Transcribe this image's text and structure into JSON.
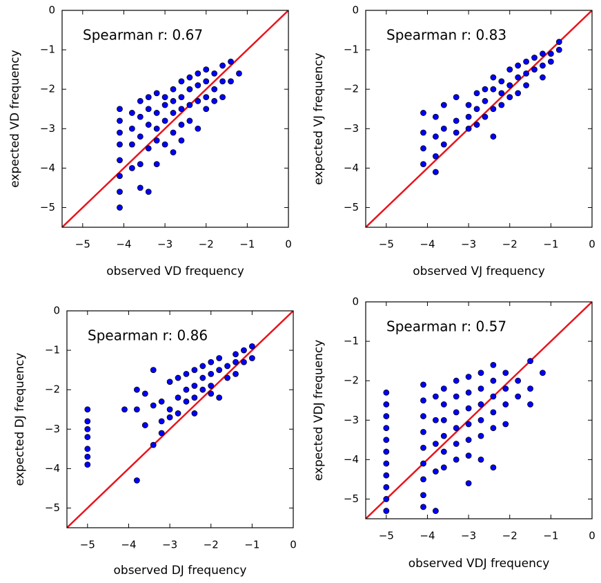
{
  "chart_data": [
    {
      "type": "scatter",
      "xlabel": "observed VD frequency",
      "ylabel": "expected VD frequency",
      "annotation": "Spearman r: 0.67",
      "color": "#0000ff",
      "edgecolor": "#000000",
      "reference_line_color": "#e8141c",
      "xlim": [
        -5.5,
        0
      ],
      "ylim": [
        -5.5,
        0
      ],
      "xticks": [
        {
          "value": -5,
          "label": "−5"
        },
        {
          "value": -4,
          "label": "−4"
        },
        {
          "value": -3,
          "label": "−3"
        },
        {
          "value": -2,
          "label": "−2"
        },
        {
          "value": -1,
          "label": "−1"
        },
        0
      ],
      "yticks": [
        {
          "value": -5,
          "label": "−5"
        },
        {
          "value": -4,
          "label": "−4"
        },
        {
          "value": -3,
          "label": "−3"
        },
        {
          "value": -2,
          "label": "−2"
        },
        {
          "value": -1,
          "label": "−1"
        },
        0
      ],
      "x": [
        -4.1,
        -4.1,
        -4.1,
        -4.1,
        -4.1,
        -4.1,
        -4.1,
        -4.1,
        -3.8,
        -3.8,
        -3.8,
        -3.8,
        -3.6,
        -3.6,
        -3.6,
        -3.6,
        -3.6,
        -3.4,
        -3.4,
        -3.4,
        -3.4,
        -3.4,
        -3.2,
        -3.2,
        -3.2,
        -3.2,
        -3.2,
        -3.0,
        -3.0,
        -3.0,
        -3.0,
        -2.8,
        -2.8,
        -2.8,
        -2.8,
        -2.8,
        -2.6,
        -2.6,
        -2.6,
        -2.6,
        -2.6,
        -2.4,
        -2.4,
        -2.4,
        -2.4,
        -2.2,
        -2.2,
        -2.2,
        -2.2,
        -2.0,
        -2.0,
        -2.0,
        -2.0,
        -1.8,
        -1.8,
        -1.8,
        -1.6,
        -1.6,
        -1.6,
        -1.4,
        -1.4,
        -1.2
      ],
      "y": [
        -2.5,
        -2.8,
        -3.1,
        -3.4,
        -3.8,
        -4.2,
        -4.6,
        -5.0,
        -2.6,
        -3.0,
        -3.4,
        -4.0,
        -2.3,
        -2.7,
        -3.2,
        -3.9,
        -4.5,
        -2.2,
        -2.5,
        -2.9,
        -3.5,
        -4.6,
        -2.1,
        -2.6,
        -3.0,
        -3.3,
        -3.9,
        -2.2,
        -2.4,
        -2.8,
        -3.4,
        -2.0,
        -2.3,
        -2.6,
        -3.1,
        -3.6,
        -1.8,
        -2.2,
        -2.5,
        -2.9,
        -3.3,
        -1.7,
        -2.0,
        -2.4,
        -2.8,
        -1.6,
        -1.9,
        -2.3,
        -3.0,
        -1.5,
        -1.8,
        -2.2,
        -2.5,
        -1.6,
        -2.0,
        -2.3,
        -1.4,
        -1.8,
        -2.2,
        -1.3,
        -1.8,
        -1.6
      ]
    },
    {
      "type": "scatter",
      "xlabel": "observed VJ frequency",
      "ylabel": "expected VJ frequency",
      "annotation": "Spearman r: 0.83",
      "color": "#0000ff",
      "edgecolor": "#000000",
      "reference_line_color": "#e8141c",
      "xlim": [
        -5.5,
        0
      ],
      "ylim": [
        -5.5,
        0
      ],
      "xticks": [
        {
          "value": -5,
          "label": "−5"
        },
        {
          "value": -4,
          "label": "−4"
        },
        {
          "value": -3,
          "label": "−3"
        },
        {
          "value": -2,
          "label": "−2"
        },
        {
          "value": -1,
          "label": "−1"
        },
        0
      ],
      "yticks": [
        {
          "value": -5,
          "label": "−5"
        },
        {
          "value": -4,
          "label": "−4"
        },
        {
          "value": -3,
          "label": "−3"
        },
        {
          "value": -2,
          "label": "−2"
        },
        {
          "value": -1,
          "label": "−1"
        },
        0
      ],
      "x": [
        -4.1,
        -4.1,
        -4.1,
        -4.1,
        -3.8,
        -3.8,
        -3.8,
        -3.8,
        -3.6,
        -3.6,
        -3.6,
        -3.3,
        -3.3,
        -3.3,
        -3.0,
        -3.0,
        -3.0,
        -2.8,
        -2.8,
        -2.8,
        -2.6,
        -2.6,
        -2.6,
        -2.4,
        -2.4,
        -2.4,
        -2.4,
        -2.2,
        -2.2,
        -2.2,
        -2.0,
        -2.0,
        -2.0,
        -1.8,
        -1.8,
        -1.8,
        -1.6,
        -1.6,
        -1.6,
        -1.4,
        -1.4,
        -1.2,
        -1.2,
        -1.2,
        -1.0,
        -1.0,
        -0.8,
        -0.8
      ],
      "y": [
        -2.6,
        -3.1,
        -3.5,
        -3.9,
        -2.7,
        -3.2,
        -3.7,
        -4.1,
        -2.4,
        -3.0,
        -3.4,
        -2.2,
        -2.8,
        -3.1,
        -2.4,
        -2.7,
        -3.0,
        -2.1,
        -2.5,
        -2.9,
        -2.0,
        -2.3,
        -2.7,
        -1.7,
        -2.0,
        -2.5,
        -3.2,
        -1.8,
        -2.1,
        -2.4,
        -1.5,
        -1.9,
        -2.2,
        -1.4,
        -1.7,
        -2.1,
        -1.3,
        -1.6,
        -1.9,
        -1.2,
        -1.5,
        -1.1,
        -1.4,
        -1.7,
        -1.1,
        -1.3,
        -0.8,
        -1.0
      ]
    },
    {
      "type": "scatter",
      "xlabel": "observed DJ frequency",
      "ylabel": "expected DJ frequency",
      "annotation": "Spearman r: 0.86",
      "color": "#0000ff",
      "edgecolor": "#000000",
      "reference_line_color": "#e8141c",
      "xlim": [
        -5.5,
        0
      ],
      "ylim": [
        -5.5,
        0
      ],
      "xticks": [
        {
          "value": -5,
          "label": "−5"
        },
        {
          "value": -4,
          "label": "−4"
        },
        {
          "value": -3,
          "label": "−3"
        },
        {
          "value": -2,
          "label": "−2"
        },
        {
          "value": -1,
          "label": "−1"
        },
        0
      ],
      "yticks": [
        {
          "value": -5,
          "label": "−5"
        },
        {
          "value": -4,
          "label": "−4"
        },
        {
          "value": -3,
          "label": "−3"
        },
        {
          "value": -2,
          "label": "−2"
        },
        {
          "value": -1,
          "label": "−1"
        },
        0
      ],
      "x": [
        -5.0,
        -5.0,
        -5.0,
        -5.0,
        -5.0,
        -5.0,
        -5.0,
        -4.1,
        -3.8,
        -3.8,
        -3.8,
        -3.6,
        -3.6,
        -3.4,
        -3.4,
        -3.4,
        -3.2,
        -3.2,
        -3.2,
        -3.0,
        -3.0,
        -3.0,
        -2.8,
        -2.8,
        -2.8,
        -2.6,
        -2.6,
        -2.6,
        -2.4,
        -2.4,
        -2.4,
        -2.4,
        -2.2,
        -2.2,
        -2.2,
        -2.0,
        -2.0,
        -2.0,
        -2.0,
        -1.8,
        -1.8,
        -1.8,
        -1.6,
        -1.6,
        -1.4,
        -1.4,
        -1.4,
        -1.2,
        -1.2,
        -1.0,
        -1.0
      ],
      "y": [
        -2.5,
        -2.8,
        -3.0,
        -3.2,
        -3.5,
        -3.7,
        -3.9,
        -2.5,
        -2.0,
        -2.5,
        -4.3,
        -2.1,
        -2.9,
        -1.5,
        -2.4,
        -3.4,
        -2.3,
        -2.8,
        -3.1,
        -1.8,
        -2.5,
        -2.7,
        -1.7,
        -2.2,
        -2.6,
        -1.6,
        -2.0,
        -2.3,
        -1.5,
        -1.9,
        -2.2,
        -2.6,
        -1.4,
        -1.7,
        -2.0,
        -1.3,
        -1.6,
        -1.9,
        -2.1,
        -1.2,
        -1.5,
        -2.2,
        -1.4,
        -1.7,
        -1.1,
        -1.3,
        -1.6,
        -1.0,
        -1.3,
        -0.9,
        -1.2
      ]
    },
    {
      "type": "scatter",
      "xlabel": "observed VDJ frequency",
      "ylabel": "expected VDJ frequency",
      "annotation": "Spearman r: 0.57",
      "color": "#0000ff",
      "edgecolor": "#000000",
      "reference_line_color": "#e8141c",
      "xlim": [
        -5.5,
        0
      ],
      "ylim": [
        -5.5,
        0
      ],
      "xticks": [
        {
          "value": -5,
          "label": "−5"
        },
        {
          "value": -4,
          "label": "−4"
        },
        {
          "value": -3,
          "label": "−3"
        },
        {
          "value": -2,
          "label": "−2"
        },
        {
          "value": -1,
          "label": "−1"
        },
        0
      ],
      "yticks": [
        {
          "value": -5,
          "label": "−5"
        },
        {
          "value": -4,
          "label": "−4"
        },
        {
          "value": -3,
          "label": "−3"
        },
        {
          "value": -2,
          "label": "−2"
        },
        {
          "value": -1,
          "label": "−1"
        },
        0
      ],
      "x": [
        -5.0,
        -5.0,
        -5.0,
        -5.0,
        -5.0,
        -5.0,
        -5.0,
        -5.0,
        -5.0,
        -5.0,
        -5.0,
        -4.1,
        -4.1,
        -4.1,
        -4.1,
        -4.1,
        -4.1,
        -4.1,
        -4.1,
        -4.1,
        -3.8,
        -3.8,
        -3.8,
        -3.8,
        -3.8,
        -3.6,
        -3.6,
        -3.6,
        -3.6,
        -3.6,
        -3.6,
        -3.3,
        -3.3,
        -3.3,
        -3.3,
        -3.3,
        -3.3,
        -3.0,
        -3.0,
        -3.0,
        -3.0,
        -3.0,
        -3.0,
        -3.0,
        -2.7,
        -2.7,
        -2.7,
        -2.7,
        -2.7,
        -2.7,
        -2.4,
        -2.4,
        -2.4,
        -2.4,
        -2.4,
        -2.4,
        -2.1,
        -2.1,
        -2.1,
        -2.1,
        -1.8,
        -1.8,
        -1.5,
        -1.5,
        -1.5,
        -1.2
      ],
      "y": [
        -2.3,
        -2.6,
        -2.9,
        -3.2,
        -3.5,
        -3.8,
        -4.1,
        -4.4,
        -4.7,
        -5.0,
        -5.3,
        -2.1,
        -2.5,
        -2.9,
        -3.3,
        -3.7,
        -4.1,
        -4.5,
        -4.9,
        -5.2,
        -2.4,
        -3.0,
        -3.6,
        -4.3,
        -5.3,
        -2.2,
        -2.6,
        -3.0,
        -3.4,
        -3.8,
        -4.2,
        -2.0,
        -2.4,
        -2.8,
        -3.2,
        -3.6,
        -4.0,
        -1.9,
        -2.3,
        -2.7,
        -3.1,
        -3.5,
        -3.9,
        -4.6,
        -1.8,
        -2.2,
        -2.6,
        -3.0,
        -3.4,
        -4.0,
        -1.6,
        -2.0,
        -2.4,
        -2.8,
        -3.2,
        -4.2,
        -1.8,
        -2.2,
        -2.6,
        -3.1,
        -2.0,
        -2.4,
        -1.5,
        -2.2,
        -2.6,
        -1.8
      ]
    }
  ]
}
